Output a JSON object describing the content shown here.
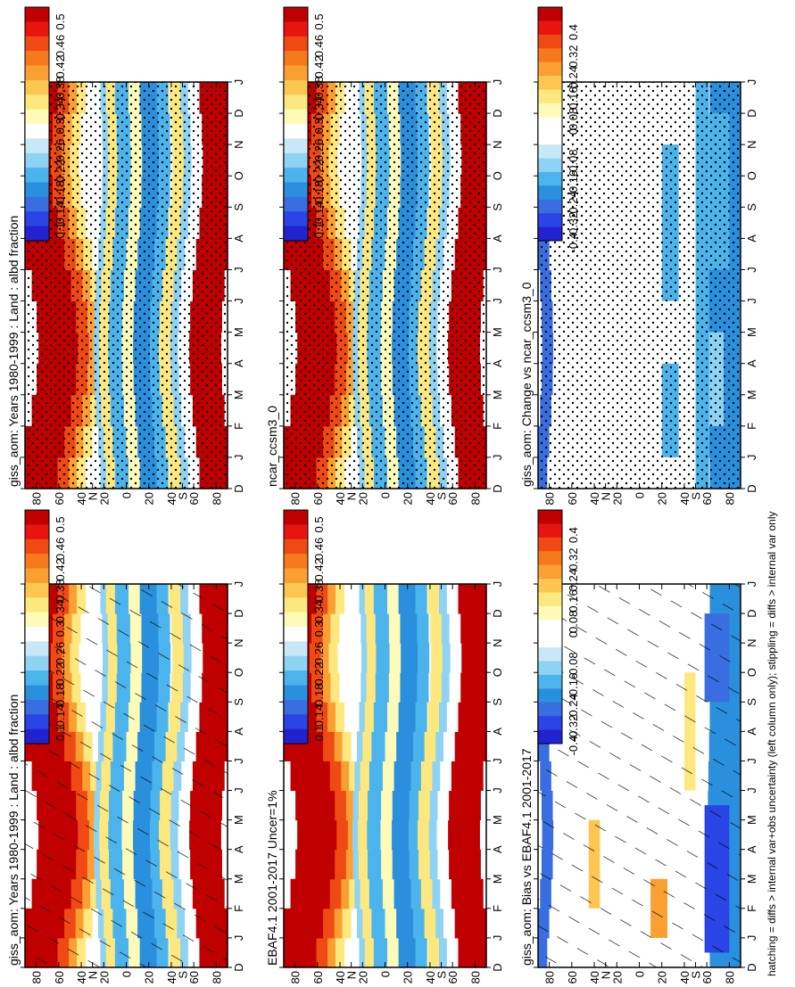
{
  "footnote": "hatching = diffs > internal var+obs uncertainty (left column only); stippling = diffs > internal var only",
  "palettes": {
    "abs": [
      "#c00000",
      "#e81410",
      "#f04a14",
      "#f67a1c",
      "#faa032",
      "#fcc650",
      "#fde880",
      "#fefab8",
      "#ffffff",
      "#c8e8f8",
      "#8ed2f4",
      "#4cb4ec",
      "#2a90de",
      "#3a6ee0",
      "#2a44e6",
      "#2222d0"
    ],
    "diff": [
      "#c00000",
      "#e81410",
      "#f04a14",
      "#f67a1c",
      "#faa032",
      "#fcc650",
      "#fde880",
      "#fefab8",
      "#ffffff",
      "#ffffff",
      "#c8e8f8",
      "#8ed2f4",
      "#4cb4ec",
      "#2a90de",
      "#3a6ee0",
      "#2a44e6",
      "#2222d0"
    ]
  },
  "colorbars": {
    "abs": {
      "labels": [
        "0.5",
        "0.46",
        "0.42",
        "0.38",
        "0.34",
        "0.3",
        "0.26",
        "0.22",
        "0.18",
        "0.14",
        "0.1"
      ]
    },
    "diff": {
      "labels": [
        "0.4",
        "0.32",
        "0.24",
        "0.16",
        "0.08",
        "0",
        "-0.08",
        "-0.16",
        "-0.24",
        "-0.32",
        "-0.4"
      ]
    }
  },
  "axes": {
    "months": [
      "D",
      "J",
      "F",
      "M",
      "A",
      "M",
      "J",
      "J",
      "A",
      "S",
      "O",
      "N",
      "D",
      "J"
    ],
    "lats": [
      "80",
      "60",
      "40",
      "N",
      "20",
      "0",
      "20",
      "40",
      "S",
      "60",
      "80"
    ],
    "lat_values": [
      80,
      60,
      40,
      30,
      20,
      0,
      -20,
      -40,
      -50,
      -60,
      -80
    ]
  },
  "chart_data": [
    {
      "id": "p1",
      "type": "heatmap",
      "title": "giss_aom: Years 1980-1999 : Land : albd fraction",
      "xlabel": "",
      "ylabel": "",
      "colorbar": "abs",
      "overlay": "hatch",
      "x": "month",
      "y": "latitude",
      "ylim": [
        -90,
        90
      ]
    },
    {
      "id": "p2",
      "type": "heatmap",
      "title": "giss_aom: Years 1980-1999 : Land : albd fraction",
      "xlabel": "",
      "ylabel": "",
      "colorbar": "abs",
      "overlay": "stipple",
      "x": "month",
      "y": "latitude",
      "ylim": [
        -90,
        90
      ]
    },
    {
      "id": "p3",
      "type": "heatmap",
      "title": "EBAF4.1 2001-2017 Uncer=1%",
      "xlabel": "",
      "ylabel": "",
      "colorbar": "abs",
      "overlay": "none",
      "x": "month",
      "y": "latitude",
      "ylim": [
        -90,
        90
      ]
    },
    {
      "id": "p4",
      "type": "heatmap",
      "title": "ncar_ccsm3_0",
      "xlabel": "",
      "ylabel": "",
      "colorbar": "abs",
      "overlay": "stipple",
      "x": "month",
      "y": "latitude",
      "ylim": [
        -90,
        90
      ]
    },
    {
      "id": "p5",
      "type": "heatmap",
      "title": "giss_aom: Bias vs EBAF4.1 2001-2017",
      "xlabel": "",
      "ylabel": "",
      "colorbar": "diff",
      "overlay": "hatch",
      "x": "month",
      "y": "latitude",
      "ylim": [
        -90,
        90
      ]
    },
    {
      "id": "p6",
      "type": "heatmap",
      "title": "giss_aom: Change vs ncar_ccsm3_0",
      "xlabel": "",
      "ylabel": "",
      "colorbar": "diff",
      "overlay": "stipple",
      "x": "month",
      "y": "latitude",
      "ylim": [
        -90,
        90
      ]
    }
  ]
}
